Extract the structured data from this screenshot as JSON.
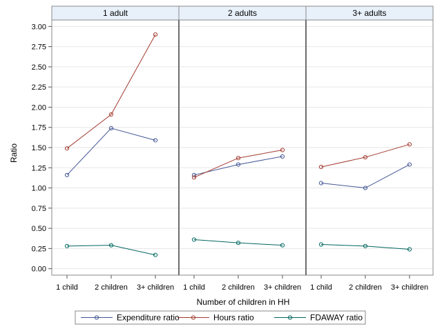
{
  "chart_data": {
    "type": "line",
    "xlabel": "Number of children in HH",
    "ylabel": "Ratio",
    "categories": [
      "1 child",
      "2 children",
      "3+ children"
    ],
    "panels": [
      "1 adult",
      "2 adults",
      "3+ adults"
    ],
    "ylim": [
      -0.08,
      3.08
    ],
    "yticks": [
      "0.00",
      "0.25",
      "0.50",
      "0.75",
      "1.00",
      "1.25",
      "1.50",
      "1.75",
      "2.00",
      "2.25",
      "2.50",
      "2.75",
      "3.00"
    ],
    "grid": true,
    "legend_position": "bottom",
    "series": [
      {
        "name": "Expenditure ratio",
        "color": "#445694",
        "values": [
          [
            1.16,
            1.74,
            1.59
          ],
          [
            1.16,
            1.29,
            1.39
          ],
          [
            1.06,
            1.0,
            1.29
          ]
        ]
      },
      {
        "name": "Hours ratio",
        "color": "#A23A2E",
        "values": [
          [
            1.49,
            1.91,
            2.9
          ],
          [
            1.13,
            1.37,
            1.47
          ],
          [
            1.26,
            1.38,
            1.54
          ]
        ]
      },
      {
        "name": "FDAWAY ratio",
        "color": "#01665E",
        "values": [
          [
            0.28,
            0.29,
            0.17
          ],
          [
            0.36,
            0.32,
            0.29
          ],
          [
            0.3,
            0.28,
            0.24
          ]
        ]
      }
    ]
  }
}
